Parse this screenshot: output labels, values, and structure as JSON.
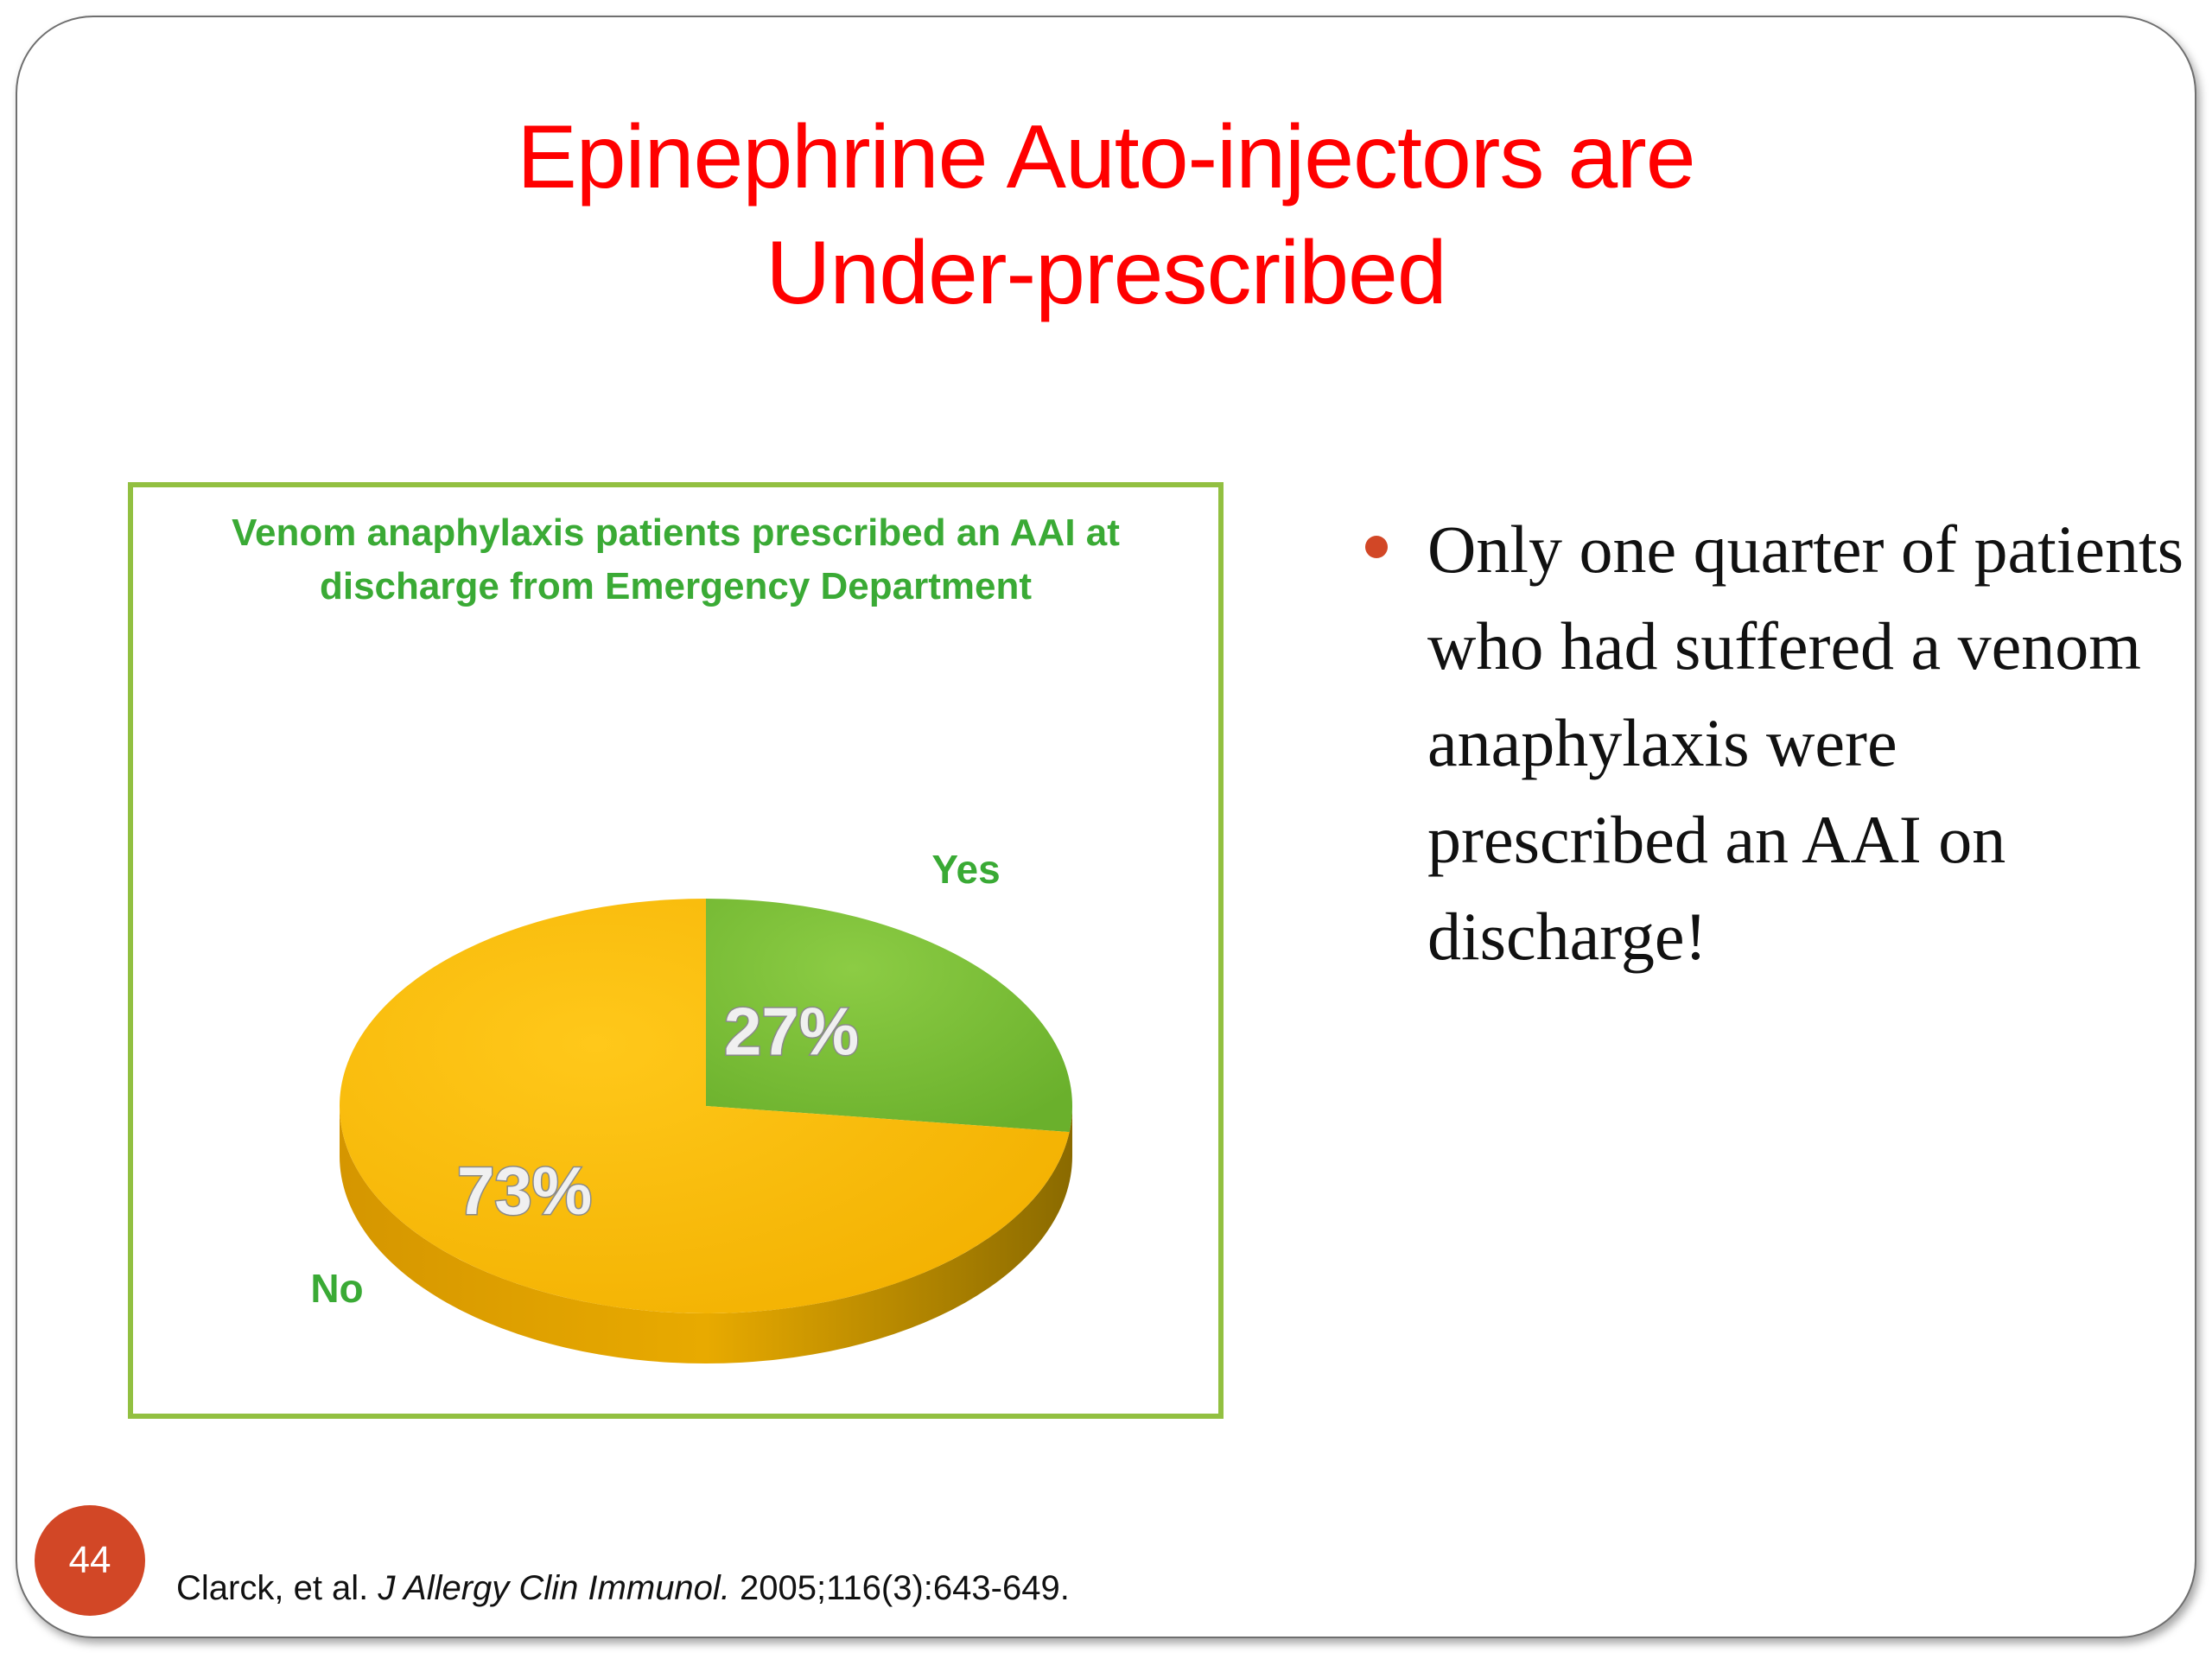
{
  "slide": {
    "title_line1": "Epinephrine Auto-injectors are",
    "title_line2": "Under-prescribed",
    "bullet_text": "Only one quarter of patients who had suffered a venom anaphylaxis were prescribed an AAI on discharge!",
    "slide_number": "44",
    "citation": {
      "authors": "Clarck, et al. ",
      "journal": "J Allergy Clin Immunol.",
      "details": " 2005;116(3):643-649."
    },
    "colors": {
      "title": "#ff0000",
      "bullet": "#d24726",
      "chart_border": "#92c041",
      "chart_title": "#3aaa35"
    }
  },
  "chart_data": {
    "type": "pie",
    "title_line1": "Venom anaphylaxis patients prescribed an AAI at",
    "title_line2": "discharge from Emergency Department",
    "slices": [
      {
        "label": "Yes",
        "value": 27,
        "value_label": "27%",
        "color": "#7dbf3a"
      },
      {
        "label": "No",
        "value": 73,
        "value_label": "73%",
        "color": "#f7b800"
      }
    ],
    "style": "3d"
  }
}
